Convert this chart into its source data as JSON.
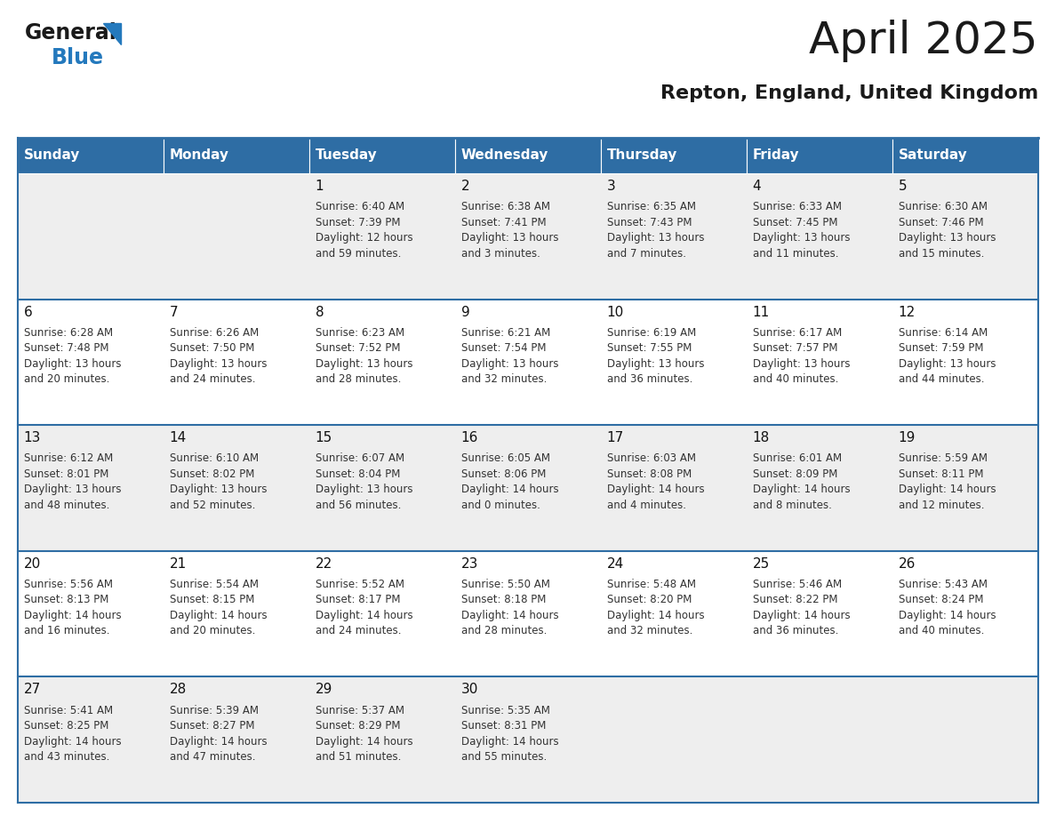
{
  "title": "April 2025",
  "subtitle": "Repton, England, United Kingdom",
  "header_bg": "#2E6DA4",
  "header_text_color": "#FFFFFF",
  "days_of_week": [
    "Sunday",
    "Monday",
    "Tuesday",
    "Wednesday",
    "Thursday",
    "Friday",
    "Saturday"
  ],
  "cell_bg_odd": "#EEEEEE",
  "cell_bg_even": "#FFFFFF",
  "border_color": "#2E6DA4",
  "row_line_color": "#2E6DA4",
  "logo_general_color": "#1A1A1A",
  "logo_blue_color": "#2479BD",
  "title_fontsize": 36,
  "subtitle_fontsize": 16,
  "header_fontsize": 11,
  "day_num_fontsize": 11,
  "info_fontsize": 8.5,
  "weeks": [
    [
      {
        "day": null,
        "info": ""
      },
      {
        "day": null,
        "info": ""
      },
      {
        "day": 1,
        "info": "Sunrise: 6:40 AM\nSunset: 7:39 PM\nDaylight: 12 hours\nand 59 minutes."
      },
      {
        "day": 2,
        "info": "Sunrise: 6:38 AM\nSunset: 7:41 PM\nDaylight: 13 hours\nand 3 minutes."
      },
      {
        "day": 3,
        "info": "Sunrise: 6:35 AM\nSunset: 7:43 PM\nDaylight: 13 hours\nand 7 minutes."
      },
      {
        "day": 4,
        "info": "Sunrise: 6:33 AM\nSunset: 7:45 PM\nDaylight: 13 hours\nand 11 minutes."
      },
      {
        "day": 5,
        "info": "Sunrise: 6:30 AM\nSunset: 7:46 PM\nDaylight: 13 hours\nand 15 minutes."
      }
    ],
    [
      {
        "day": 6,
        "info": "Sunrise: 6:28 AM\nSunset: 7:48 PM\nDaylight: 13 hours\nand 20 minutes."
      },
      {
        "day": 7,
        "info": "Sunrise: 6:26 AM\nSunset: 7:50 PM\nDaylight: 13 hours\nand 24 minutes."
      },
      {
        "day": 8,
        "info": "Sunrise: 6:23 AM\nSunset: 7:52 PM\nDaylight: 13 hours\nand 28 minutes."
      },
      {
        "day": 9,
        "info": "Sunrise: 6:21 AM\nSunset: 7:54 PM\nDaylight: 13 hours\nand 32 minutes."
      },
      {
        "day": 10,
        "info": "Sunrise: 6:19 AM\nSunset: 7:55 PM\nDaylight: 13 hours\nand 36 minutes."
      },
      {
        "day": 11,
        "info": "Sunrise: 6:17 AM\nSunset: 7:57 PM\nDaylight: 13 hours\nand 40 minutes."
      },
      {
        "day": 12,
        "info": "Sunrise: 6:14 AM\nSunset: 7:59 PM\nDaylight: 13 hours\nand 44 minutes."
      }
    ],
    [
      {
        "day": 13,
        "info": "Sunrise: 6:12 AM\nSunset: 8:01 PM\nDaylight: 13 hours\nand 48 minutes."
      },
      {
        "day": 14,
        "info": "Sunrise: 6:10 AM\nSunset: 8:02 PM\nDaylight: 13 hours\nand 52 minutes."
      },
      {
        "day": 15,
        "info": "Sunrise: 6:07 AM\nSunset: 8:04 PM\nDaylight: 13 hours\nand 56 minutes."
      },
      {
        "day": 16,
        "info": "Sunrise: 6:05 AM\nSunset: 8:06 PM\nDaylight: 14 hours\nand 0 minutes."
      },
      {
        "day": 17,
        "info": "Sunrise: 6:03 AM\nSunset: 8:08 PM\nDaylight: 14 hours\nand 4 minutes."
      },
      {
        "day": 18,
        "info": "Sunrise: 6:01 AM\nSunset: 8:09 PM\nDaylight: 14 hours\nand 8 minutes."
      },
      {
        "day": 19,
        "info": "Sunrise: 5:59 AM\nSunset: 8:11 PM\nDaylight: 14 hours\nand 12 minutes."
      }
    ],
    [
      {
        "day": 20,
        "info": "Sunrise: 5:56 AM\nSunset: 8:13 PM\nDaylight: 14 hours\nand 16 minutes."
      },
      {
        "day": 21,
        "info": "Sunrise: 5:54 AM\nSunset: 8:15 PM\nDaylight: 14 hours\nand 20 minutes."
      },
      {
        "day": 22,
        "info": "Sunrise: 5:52 AM\nSunset: 8:17 PM\nDaylight: 14 hours\nand 24 minutes."
      },
      {
        "day": 23,
        "info": "Sunrise: 5:50 AM\nSunset: 8:18 PM\nDaylight: 14 hours\nand 28 minutes."
      },
      {
        "day": 24,
        "info": "Sunrise: 5:48 AM\nSunset: 8:20 PM\nDaylight: 14 hours\nand 32 minutes."
      },
      {
        "day": 25,
        "info": "Sunrise: 5:46 AM\nSunset: 8:22 PM\nDaylight: 14 hours\nand 36 minutes."
      },
      {
        "day": 26,
        "info": "Sunrise: 5:43 AM\nSunset: 8:24 PM\nDaylight: 14 hours\nand 40 minutes."
      }
    ],
    [
      {
        "day": 27,
        "info": "Sunrise: 5:41 AM\nSunset: 8:25 PM\nDaylight: 14 hours\nand 43 minutes."
      },
      {
        "day": 28,
        "info": "Sunrise: 5:39 AM\nSunset: 8:27 PM\nDaylight: 14 hours\nand 47 minutes."
      },
      {
        "day": 29,
        "info": "Sunrise: 5:37 AM\nSunset: 8:29 PM\nDaylight: 14 hours\nand 51 minutes."
      },
      {
        "day": 30,
        "info": "Sunrise: 5:35 AM\nSunset: 8:31 PM\nDaylight: 14 hours\nand 55 minutes."
      },
      {
        "day": null,
        "info": ""
      },
      {
        "day": null,
        "info": ""
      },
      {
        "day": null,
        "info": ""
      }
    ]
  ]
}
